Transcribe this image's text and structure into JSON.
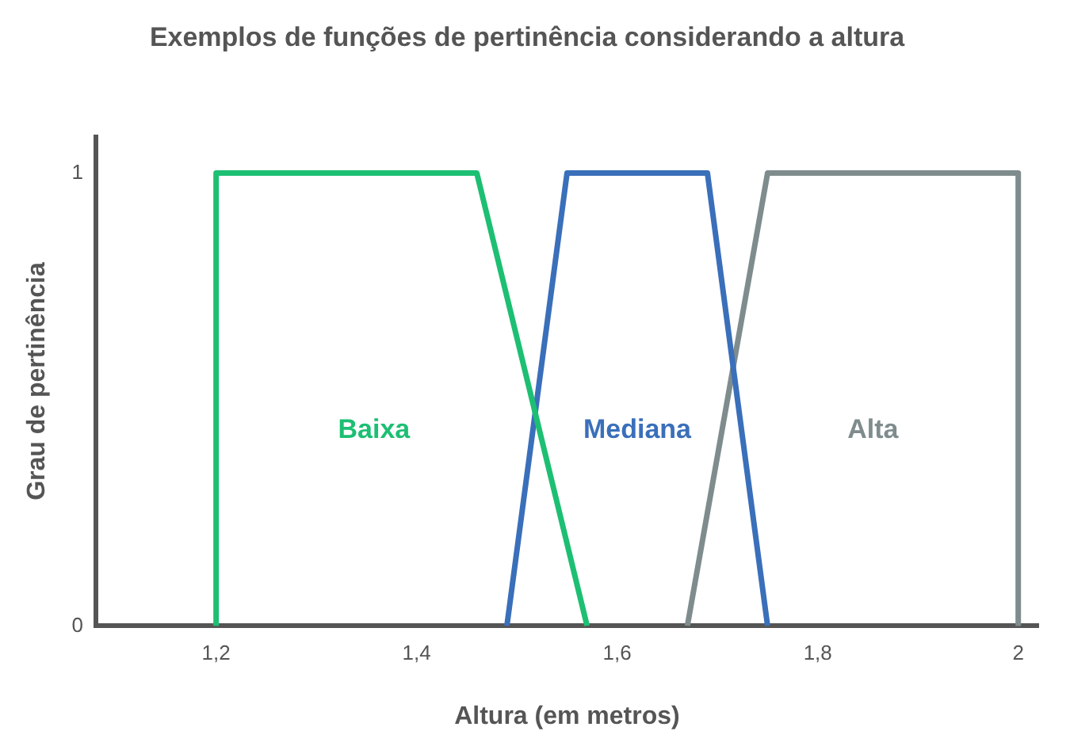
{
  "chart_data": {
    "type": "line",
    "title": "Exemplos de funções de pertinência considerando a altura",
    "xlabel": "Altura (em metros)",
    "ylabel": "Grau de pertinência",
    "series": [
      {
        "name": "Baixa",
        "color": "#1dbf73",
        "x": [
          1.2,
          1.2,
          1.46,
          1.57
        ],
        "values": [
          0,
          1,
          1,
          0
        ]
      },
      {
        "name": "Mediana",
        "color": "#3a6fba",
        "x": [
          1.49,
          1.55,
          1.69,
          1.75
        ],
        "values": [
          0,
          1,
          1,
          0
        ]
      },
      {
        "name": "Alta",
        "color": "#7f8c8d",
        "x": [
          1.67,
          1.75,
          2,
          2
        ],
        "values": [
          0,
          1,
          1,
          0
        ]
      }
    ],
    "xlim": [
      1.08,
      2.02
    ],
    "xticks": [
      {
        "value": 1.2,
        "label": "1,2"
      },
      {
        "value": 1.4,
        "label": "1,4"
      },
      {
        "value": 1.6,
        "label": "1,6"
      },
      {
        "value": 1.8,
        "label": "1,8"
      },
      {
        "value": 2,
        "label": "2"
      }
    ],
    "ylim": [
      0,
      1.08
    ],
    "yticks": [
      0,
      1
    ],
    "grid": false,
    "legend": false,
    "marker": "none",
    "line_style": "solid"
  }
}
